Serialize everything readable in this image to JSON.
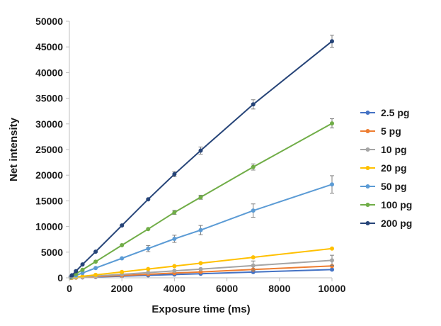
{
  "chart_data": {
    "type": "line",
    "title": "",
    "xlabel": "Exposure time (ms)",
    "ylabel": "Net intensity",
    "xlim": [
      0,
      10000
    ],
    "ylim": [
      0,
      50000
    ],
    "xticks": [
      "0",
      "2000",
      "4000",
      "6000",
      "8000",
      "10000"
    ],
    "yticks": [
      "0",
      "5000",
      "10000",
      "15000",
      "20000",
      "25000",
      "30000",
      "35000",
      "40000",
      "45000",
      "50000"
    ],
    "grid": false,
    "legend_position": "right",
    "x": [
      50,
      100,
      250,
      500,
      1000,
      2000,
      3000,
      4000,
      5000,
      7000,
      10000
    ],
    "series": [
      {
        "name": "2.5 pg",
        "color": "#4472c4",
        "values": [
          8,
          16,
          40,
          80,
          160,
          320,
          480,
          640,
          800,
          1120,
          1600
        ],
        "errors": [
          0,
          0,
          0,
          0,
          0,
          0,
          0,
          0,
          0,
          0,
          0
        ]
      },
      {
        "name": "5 pg",
        "color": "#ed7d31",
        "values": [
          11,
          23,
          57,
          115,
          230,
          460,
          690,
          920,
          1150,
          1610,
          2300
        ],
        "errors": [
          0,
          0,
          0,
          0,
          0,
          0,
          0,
          0,
          0,
          0,
          0
        ]
      },
      {
        "name": "10 pg",
        "color": "#a5a5a5",
        "values": [
          17,
          34,
          85,
          170,
          340,
          680,
          1020,
          1360,
          1700,
          2380,
          3400
        ],
        "errors": [
          0,
          0,
          0,
          0,
          0,
          0,
          0,
          0,
          0,
          900,
          1000
        ]
      },
      {
        "name": "20 pg",
        "color": "#ffc000",
        "values": [
          29,
          57,
          143,
          285,
          570,
          1140,
          1710,
          2280,
          2850,
          3990,
          5700
        ],
        "errors": [
          0,
          0,
          0,
          0,
          0,
          0,
          0,
          0,
          0,
          0,
          0
        ]
      },
      {
        "name": "50 pg",
        "color": "#5b9bd5",
        "values": [
          90,
          185,
          470,
          940,
          1900,
          3800,
          5700,
          7600,
          9300,
          13100,
          18200
        ],
        "errors": [
          0,
          0,
          0,
          0,
          0,
          0,
          600,
          700,
          900,
          1300,
          1700
        ]
      },
      {
        "name": "100 pg",
        "color": "#70ad47",
        "values": [
          150,
          300,
          780,
          1560,
          3150,
          6350,
          9500,
          12750,
          15700,
          21600,
          30100
        ],
        "errors": [
          0,
          0,
          0,
          0,
          0,
          0,
          0,
          400,
          400,
          600,
          900
        ]
      },
      {
        "name": "200 pg",
        "color": "#264478",
        "values": [
          250,
          500,
          1300,
          2600,
          5100,
          10200,
          15300,
          20200,
          24800,
          33800,
          46100
        ],
        "errors": [
          0,
          0,
          0,
          0,
          0,
          0,
          0,
          500,
          700,
          900,
          1200
        ]
      }
    ]
  }
}
